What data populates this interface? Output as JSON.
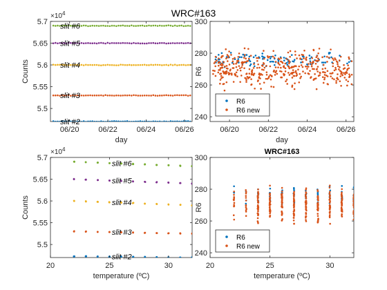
{
  "figure": {
    "suptitle": "WRC#163"
  },
  "colors": {
    "blue": "#0072BD",
    "orange": "#D95319",
    "yellow": "#EDB120",
    "purple": "#7E2F8E",
    "green": "#77AC30",
    "axis": "#262626",
    "background": "#ffffff"
  },
  "chart_data": [
    {
      "id": "counts_vs_day",
      "type": "scatter",
      "title": "",
      "xlabel": "day",
      "ylabel": "Counts",
      "xlim": [
        0,
        7.4
      ],
      "x_tick_positions": [
        1,
        3,
        5,
        7
      ],
      "x_tick_labels": [
        "06/20",
        "06/22",
        "06/24",
        "06/26"
      ],
      "ylim": [
        54.7,
        57.0
      ],
      "y_tick_positions": [
        55.0,
        55.5,
        56.0,
        56.5,
        57.0
      ],
      "y_tick_labels": [
        "5.5",
        "5.55",
        "5.6",
        "5.65",
        "5.7"
      ],
      "y_exponent_label": "×10",
      "y_exponent_power": "4",
      "grid": false,
      "x_range": [
        0.15,
        7.3
      ],
      "series": [
        {
          "name": "slit #6",
          "color": "green",
          "value": 56.9,
          "label_x": 0.8
        },
        {
          "name": "slit #5",
          "color": "purple",
          "value": 56.5,
          "label_x": 0.8
        },
        {
          "name": "slit #4",
          "color": "yellow",
          "value": 56.0,
          "label_x": 0.8
        },
        {
          "name": "slit #3",
          "color": "orange",
          "value": 55.3,
          "label_x": 0.8
        },
        {
          "name": "slit #2",
          "color": "blue",
          "value": 54.7,
          "label_x": 0.8
        }
      ]
    },
    {
      "id": "r6_vs_day",
      "type": "scatter",
      "title": "",
      "xlabel": "day",
      "ylabel": "R6",
      "xlim": [
        0,
        7.4
      ],
      "x_tick_positions": [
        1,
        3,
        5,
        7
      ],
      "x_tick_labels": [
        "06/20",
        "06/22",
        "06/24",
        "06/26"
      ],
      "ylim": [
        237,
        300
      ],
      "y_tick_positions": [
        240,
        260,
        280,
        300
      ],
      "y_tick_labels": [
        "240",
        "260",
        "280",
        "300"
      ],
      "grid": false,
      "legend": {
        "placement": "bottom-left",
        "entries": [
          "R6",
          "R6 new"
        ]
      },
      "series": [
        {
          "name": "R6",
          "color": "blue",
          "center": 276,
          "spread": 4,
          "count": 110,
          "x_range": [
            0.15,
            7.3
          ]
        },
        {
          "name": "R6 new",
          "color": "orange",
          "center": 270,
          "spread": 10,
          "count": 420,
          "x_range": [
            0.15,
            7.3
          ]
        }
      ]
    },
    {
      "id": "counts_vs_temperature",
      "type": "scatter",
      "title": "",
      "xlabel": "temperature (ºC)",
      "ylabel": "Counts",
      "xlim": [
        20,
        32
      ],
      "x_tick_positions": [
        20,
        25,
        30
      ],
      "x_tick_labels": [
        "20",
        "25",
        "30"
      ],
      "ylim": [
        54.7,
        57.0
      ],
      "y_tick_positions": [
        55.0,
        55.5,
        56.0,
        56.5,
        57.0
      ],
      "y_tick_labels": [
        "5.5",
        "5.55",
        "5.6",
        "5.65",
        "5.7"
      ],
      "y_exponent_label": "×10",
      "y_exponent_power": "4",
      "grid": false,
      "temperatures": [
        22,
        23,
        24,
        25,
        26,
        27,
        28,
        29,
        30,
        31,
        32
      ],
      "series": [
        {
          "name": "slit #6",
          "color": "green",
          "value": 56.9,
          "slope": -0.01,
          "label_x": 25.2
        },
        {
          "name": "slit #5",
          "color": "purple",
          "value": 56.5,
          "slope": -0.01,
          "label_x": 25.2
        },
        {
          "name": "slit #4",
          "color": "yellow",
          "value": 56.0,
          "slope": -0.01,
          "label_x": 25.2
        },
        {
          "name": "slit #3",
          "color": "orange",
          "value": 55.3,
          "slope": -0.005,
          "label_x": 25.2
        },
        {
          "name": "slit #2",
          "color": "blue",
          "value": 54.73,
          "slope": -0.003,
          "label_x": 25.2
        }
      ]
    },
    {
      "id": "r6_vs_temperature",
      "type": "scatter",
      "title": "WRC#163",
      "xlabel": "temperature (ºC)",
      "ylabel": "R6",
      "xlim": [
        20,
        32
      ],
      "x_tick_positions": [
        20,
        25,
        30
      ],
      "x_tick_labels": [
        "20",
        "25",
        "30"
      ],
      "ylim": [
        237,
        300
      ],
      "y_tick_positions": [
        240,
        260,
        280,
        300
      ],
      "y_tick_labels": [
        "240",
        "260",
        "280",
        "300"
      ],
      "grid": false,
      "legend": {
        "placement": "bottom-left",
        "entries": [
          "R6",
          "R6 new"
        ]
      },
      "temperatures": [
        22,
        23,
        24,
        25,
        26,
        27,
        28,
        29,
        30,
        31,
        32
      ],
      "series": [
        {
          "name": "R6",
          "color": "blue",
          "center": 276,
          "spread": 5,
          "per_column": 10
        },
        {
          "name": "R6 new",
          "color": "orange",
          "center": 270,
          "spread": 9,
          "per_column": 40
        }
      ]
    }
  ]
}
